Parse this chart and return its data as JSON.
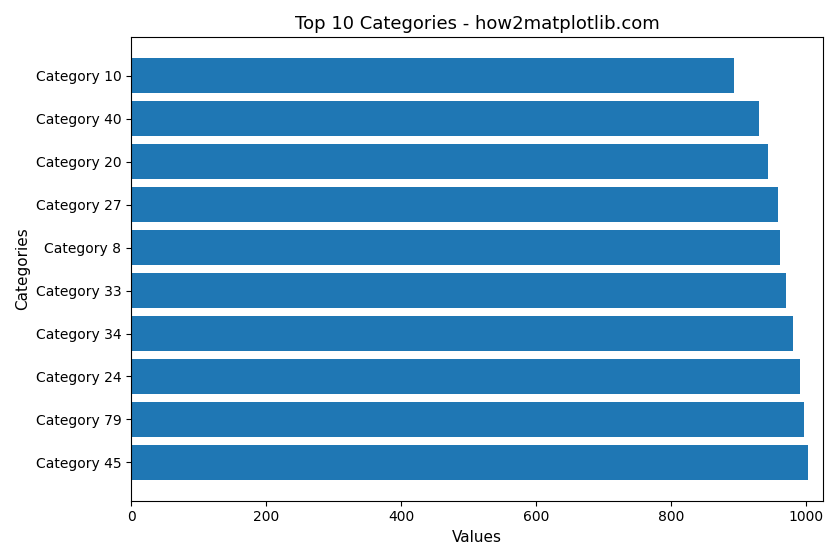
{
  "title": "Top 10 Categories - how2matplotlib.com",
  "categories": [
    "Category 10",
    "Category 40",
    "Category 20",
    "Category 27",
    "Category 8",
    "Category 33",
    "Category 34",
    "Category 24",
    "Category 79",
    "Category 45"
  ],
  "values": [
    893,
    930,
    943,
    958,
    961,
    970,
    980,
    990,
    997,
    1002
  ],
  "bar_color": "#1f77b4",
  "xlabel": "Values",
  "ylabel": "Categories",
  "xlim": [
    0,
    1025
  ],
  "background_color": "#ffffff",
  "title_fontsize": 13,
  "label_fontsize": 11
}
